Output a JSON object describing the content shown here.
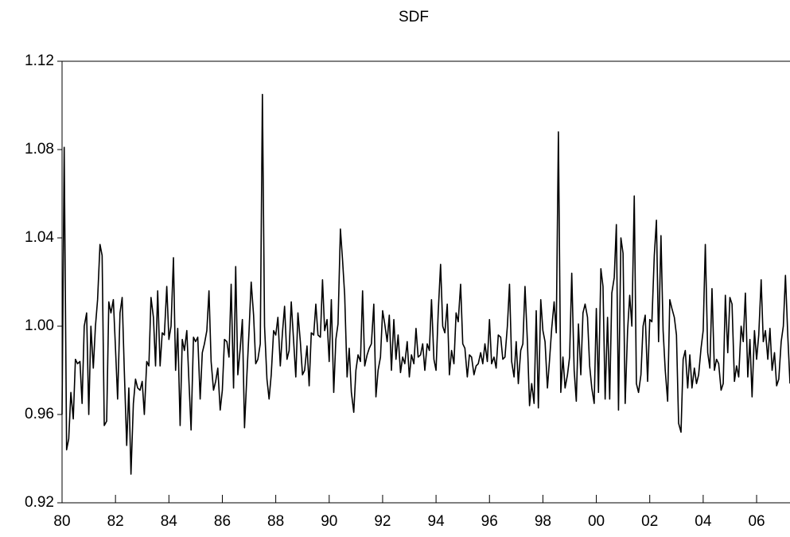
{
  "chart_data": {
    "type": "line",
    "title": "SDF",
    "color": "#000000",
    "xlim": [
      1980,
      2007.25
    ],
    "xticks": [
      {
        "value": 1980,
        "label": "80"
      },
      {
        "value": 1982,
        "label": "82"
      },
      {
        "value": 1984,
        "label": "84"
      },
      {
        "value": 1986,
        "label": "86"
      },
      {
        "value": 1988,
        "label": "88"
      },
      {
        "value": 1990,
        "label": "90"
      },
      {
        "value": 1992,
        "label": "92"
      },
      {
        "value": 1994,
        "label": "94"
      },
      {
        "value": 1996,
        "label": "96"
      },
      {
        "value": 1998,
        "label": "98"
      },
      {
        "value": 2000,
        "label": "00"
      },
      {
        "value": 2002,
        "label": "02"
      },
      {
        "value": 2004,
        "label": "04"
      },
      {
        "value": 2006,
        "label": "06"
      }
    ],
    "ylim": [
      0.92,
      1.12
    ],
    "yticks": [
      0.92,
      0.96,
      {
        "value": 1,
        "label": "1.00"
      },
      1.04,
      1.08,
      1.12
    ],
    "x": [
      1980,
      1980.08,
      1980.17,
      1980.25,
      1980.33,
      1980.42,
      1980.5,
      1980.58,
      1980.67,
      1980.75,
      1980.83,
      1980.92,
      1981,
      1981.08,
      1981.17,
      1981.25,
      1981.33,
      1981.42,
      1981.5,
      1981.58,
      1981.67,
      1981.75,
      1981.83,
      1981.92,
      1982,
      1982.08,
      1982.17,
      1982.25,
      1982.33,
      1982.42,
      1982.5,
      1982.58,
      1982.67,
      1982.75,
      1982.83,
      1982.92,
      1983,
      1983.08,
      1983.17,
      1983.25,
      1983.33,
      1983.42,
      1983.5,
      1983.58,
      1983.67,
      1983.75,
      1983.83,
      1983.92,
      1984,
      1984.08,
      1984.17,
      1984.25,
      1984.33,
      1984.42,
      1984.5,
      1984.58,
      1984.67,
      1984.75,
      1984.83,
      1984.92,
      1985,
      1985.08,
      1985.17,
      1985.25,
      1985.33,
      1985.42,
      1985.5,
      1985.58,
      1985.67,
      1985.75,
      1985.83,
      1985.92,
      1986,
      1986.08,
      1986.17,
      1986.25,
      1986.33,
      1986.42,
      1986.5,
      1986.58,
      1986.67,
      1986.75,
      1986.83,
      1986.92,
      1987,
      1987.08,
      1987.17,
      1987.25,
      1987.33,
      1987.42,
      1987.5,
      1987.58,
      1987.67,
      1987.75,
      1987.83,
      1987.92,
      1988,
      1988.08,
      1988.17,
      1988.25,
      1988.33,
      1988.42,
      1988.5,
      1988.58,
      1988.67,
      1988.75,
      1988.83,
      1988.92,
      1989,
      1989.08,
      1989.17,
      1989.25,
      1989.33,
      1989.42,
      1989.5,
      1989.58,
      1989.67,
      1989.75,
      1989.83,
      1989.92,
      1990,
      1990.08,
      1990.17,
      1990.25,
      1990.33,
      1990.42,
      1990.5,
      1990.58,
      1990.67,
      1990.75,
      1990.83,
      1990.92,
      1991,
      1991.08,
      1991.17,
      1991.25,
      1991.33,
      1991.42,
      1991.5,
      1991.58,
      1991.67,
      1991.75,
      1991.83,
      1991.92,
      1992,
      1992.08,
      1992.17,
      1992.25,
      1992.33,
      1992.42,
      1992.5,
      1992.58,
      1992.67,
      1992.75,
      1992.83,
      1992.92,
      1993,
      1993.08,
      1993.17,
      1993.25,
      1993.33,
      1993.42,
      1993.5,
      1993.58,
      1993.67,
      1993.75,
      1993.83,
      1993.92,
      1994,
      1994.08,
      1994.17,
      1994.25,
      1994.33,
      1994.42,
      1994.5,
      1994.58,
      1994.67,
      1994.75,
      1994.83,
      1994.92,
      1995,
      1995.08,
      1995.17,
      1995.25,
      1995.33,
      1995.42,
      1995.5,
      1995.58,
      1995.67,
      1995.75,
      1995.83,
      1995.92,
      1996,
      1996.08,
      1996.17,
      1996.25,
      1996.33,
      1996.42,
      1996.5,
      1996.58,
      1996.67,
      1996.75,
      1996.83,
      1996.92,
      1997,
      1997.08,
      1997.17,
      1997.25,
      1997.33,
      1997.42,
      1997.5,
      1997.58,
      1997.67,
      1997.75,
      1997.83,
      1997.92,
      1998,
      1998.08,
      1998.17,
      1998.25,
      1998.33,
      1998.42,
      1998.5,
      1998.58,
      1998.67,
      1998.75,
      1998.83,
      1998.92,
      1999,
      1999.08,
      1999.17,
      1999.25,
      1999.33,
      1999.42,
      1999.5,
      1999.58,
      1999.67,
      1999.75,
      1999.83,
      1999.92,
      2000,
      2000.08,
      2000.17,
      2000.25,
      2000.33,
      2000.42,
      2000.5,
      2000.58,
      2000.67,
      2000.75,
      2000.83,
      2000.92,
      2001,
      2001.08,
      2001.17,
      2001.25,
      2001.33,
      2001.42,
      2001.5,
      2001.58,
      2001.67,
      2001.75,
      2001.83,
      2001.92,
      2002,
      2002.08,
      2002.17,
      2002.25,
      2002.33,
      2002.42,
      2002.5,
      2002.58,
      2002.67,
      2002.75,
      2002.83,
      2002.92,
      2003,
      2003.08,
      2003.17,
      2003.25,
      2003.33,
      2003.42,
      2003.5,
      2003.58,
      2003.67,
      2003.75,
      2003.83,
      2003.92,
      2004,
      2004.08,
      2004.17,
      2004.25,
      2004.33,
      2004.42,
      2004.5,
      2004.58,
      2004.67,
      2004.75,
      2004.83,
      2004.92,
      2005,
      2005.08,
      2005.17,
      2005.25,
      2005.33,
      2005.42,
      2005.5,
      2005.58,
      2005.67,
      2005.75,
      2005.83,
      2005.92,
      2006,
      2006.08,
      2006.17,
      2006.25,
      2006.33,
      2006.42,
      2006.5,
      2006.58,
      2006.67,
      2006.75,
      2006.83,
      2006.92,
      2007,
      2007.08,
      2007.17,
      2007.25
    ],
    "values": [
      0.96,
      1.081,
      0.944,
      0.949,
      0.97,
      0.958,
      0.985,
      0.983,
      0.984,
      0.965,
      1.0,
      1.006,
      0.96,
      1.0,
      0.981,
      1.0,
      1.012,
      1.037,
      1.032,
      0.955,
      0.957,
      1.011,
      1.006,
      1.012,
      0.99,
      0.967,
      1.006,
      1.013,
      0.98,
      0.946,
      0.972,
      0.933,
      0.965,
      0.976,
      0.972,
      0.971,
      0.975,
      0.96,
      0.984,
      0.982,
      1.013,
      1.004,
      0.982,
      1.016,
      0.982,
      0.997,
      0.996,
      1.018,
      0.994,
      1.0,
      1.031,
      0.98,
      0.999,
      0.955,
      0.994,
      0.989,
      0.998,
      0.975,
      0.953,
      0.995,
      0.993,
      0.995,
      0.967,
      0.988,
      0.992,
      0.998,
      1.016,
      0.984,
      0.971,
      0.975,
      0.981,
      0.962,
      0.971,
      0.994,
      0.993,
      0.986,
      1.019,
      0.972,
      1.027,
      0.978,
      0.99,
      1.003,
      0.954,
      0.978,
      0.998,
      1.02,
      1.005,
      0.983,
      0.985,
      0.992,
      1.105,
      1.0,
      0.976,
      0.967,
      0.978,
      0.998,
      0.996,
      1.004,
      0.982,
      0.997,
      1.009,
      0.985,
      0.989,
      1.011,
      0.993,
      0.977,
      1.006,
      0.993,
      0.978,
      0.98,
      0.991,
      0.973,
      0.997,
      0.996,
      1.01,
      0.996,
      0.995,
      1.021,
      0.998,
      1.003,
      0.984,
      1.012,
      0.97,
      0.994,
      1.001,
      1.044,
      1.03,
      1.014,
      0.977,
      0.99,
      0.97,
      0.961,
      0.98,
      0.987,
      0.984,
      1.016,
      0.982,
      0.987,
      0.99,
      0.992,
      1.01,
      0.968,
      0.98,
      0.986,
      1.007,
      1.001,
      0.993,
      1.005,
      0.98,
      1.003,
      0.985,
      0.996,
      0.979,
      0.986,
      0.983,
      0.993,
      0.977,
      0.987,
      0.983,
      0.999,
      0.986,
      0.987,
      0.992,
      0.98,
      0.992,
      0.989,
      1.012,
      0.985,
      0.98,
      1.006,
      1.028,
      1.0,
      0.997,
      1.01,
      0.978,
      0.989,
      0.983,
      1.006,
      1.002,
      1.019,
      0.992,
      0.99,
      0.977,
      0.987,
      0.986,
      0.978,
      0.982,
      0.983,
      0.988,
      0.983,
      0.992,
      0.984,
      1.003,
      0.983,
      0.986,
      0.981,
      0.996,
      0.995,
      0.985,
      0.986,
      1.0,
      1.019,
      0.984,
      0.977,
      0.993,
      0.974,
      0.989,
      0.992,
      1.018,
      0.993,
      0.964,
      0.974,
      0.965,
      1.007,
      0.963,
      1.012,
      0.998,
      0.993,
      0.972,
      0.985,
      0.999,
      1.011,
      0.997,
      1.088,
      0.97,
      0.986,
      0.972,
      0.978,
      0.986,
      1.024,
      0.98,
      0.966,
      1.001,
      0.978,
      1.006,
      1.01,
      1.004,
      0.982,
      0.972,
      0.965,
      1.008,
      0.97,
      1.026,
      1.018,
      0.967,
      1.004,
      0.967,
      1.015,
      1.022,
      1.046,
      0.962,
      1.04,
      1.033,
      0.965,
      0.998,
      1.014,
      1.0,
      1.059,
      0.974,
      0.97,
      0.978,
      1.0,
      1.005,
      0.975,
      1.003,
      1.002,
      1.032,
      1.048,
      0.993,
      1.041,
      0.998,
      0.98,
      0.966,
      1.012,
      1.008,
      1.004,
      0.996,
      0.956,
      0.952,
      0.985,
      0.989,
      0.972,
      0.987,
      0.972,
      0.981,
      0.974,
      0.978,
      0.99,
      0.998,
      1.037,
      0.988,
      0.981,
      1.017,
      0.98,
      0.985,
      0.983,
      0.971,
      0.974,
      1.014,
      0.988,
      1.013,
      1.01,
      0.975,
      0.982,
      0.977,
      1.0,
      0.993,
      1.015,
      0.977,
      0.994,
      0.968,
      0.998,
      0.985,
      0.996,
      1.021,
      0.993,
      0.998,
      0.985,
      0.999,
      0.98,
      0.988,
      0.973,
      0.976,
      0.993,
      1.0,
      1.023,
      0.995,
      0.974
    ]
  }
}
